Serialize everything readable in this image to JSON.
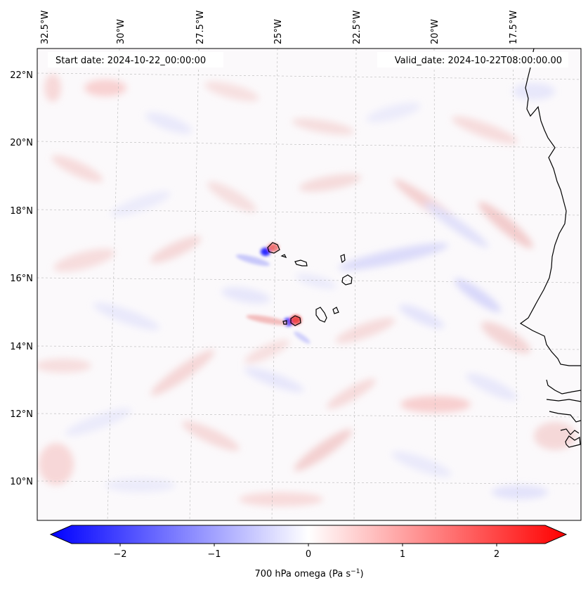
{
  "header": {
    "start_date": "Start date: 2024-10-22_00:00:00",
    "valid_date": "Valid_date: 2024-10-22T08:00:00.00"
  },
  "map": {
    "variable": "700 hPa omega",
    "lon_labels": [
      "32.5°W",
      "30°W",
      "27.5°W",
      "25°W",
      "22.5°W",
      "20°W",
      "17.5°W"
    ],
    "lat_labels": [
      "22°N",
      "20°N",
      "18°N",
      "16°N",
      "14°N",
      "12°N",
      "10°N"
    ]
  },
  "colorbar": {
    "label_main": "700 hPa omega (Pa s",
    "label_unit_exp": "−1",
    "label_close": ")",
    "ticks": [
      "−2",
      "−1",
      "0",
      "1",
      "2"
    ],
    "min_color": "#0000ff",
    "mid_color": "#ffffff",
    "max_color": "#ff0000"
  }
}
